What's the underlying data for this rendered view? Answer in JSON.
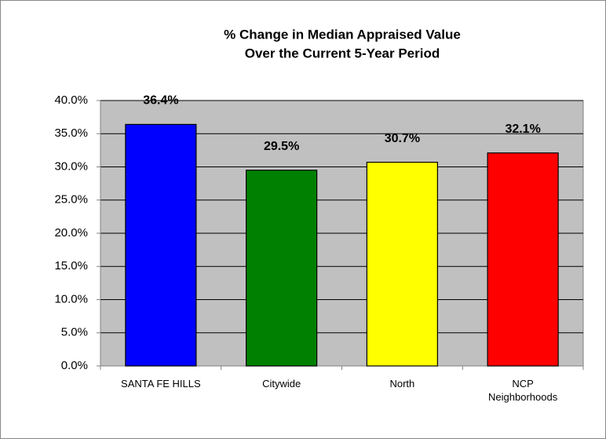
{
  "chart_data": {
    "type": "bar",
    "title": [
      "% Change in Median Appraised Value",
      "Over the Current 5-Year Period"
    ],
    "categories": [
      "SANTA FE HILLS",
      "Citywide",
      "North",
      "NCP Neighborhoods"
    ],
    "values": [
      36.4,
      29.5,
      30.7,
      32.1
    ],
    "value_labels": [
      "36.4%",
      "29.5%",
      "30.7%",
      "32.1%"
    ],
    "colors": [
      "#0000ff",
      "#008000",
      "#ffff00",
      "#ff0000"
    ],
    "ylim": [
      0,
      40
    ],
    "yticks": [
      {
        "value": 0,
        "label": "0.0%"
      },
      {
        "value": 5,
        "label": "5.0%"
      },
      {
        "value": 10,
        "label": "10.0%"
      },
      {
        "value": 15,
        "label": "15.0%"
      },
      {
        "value": 20,
        "label": "20.0%"
      },
      {
        "value": 25,
        "label": "25.0%"
      },
      {
        "value": 30,
        "label": "30.0%"
      },
      {
        "value": 35,
        "label": "35.0%"
      },
      {
        "value": 40,
        "label": "40.0%"
      }
    ],
    "grid": true
  }
}
